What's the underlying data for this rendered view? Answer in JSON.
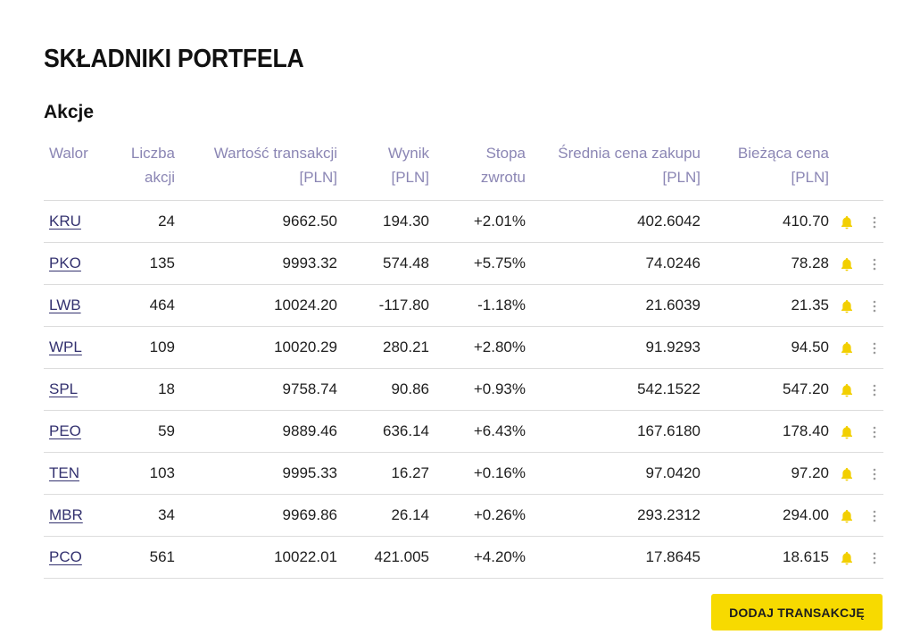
{
  "page": {
    "title": "SKŁADNIKI PORTFELA",
    "section_title": "Akcje"
  },
  "table": {
    "headers": {
      "walor": "Walor",
      "liczba_1": "Liczba",
      "liczba_2": "akcji",
      "wartosc_1": "Wartość transakcji",
      "wartosc_2": "[PLN]",
      "wynik_1": "Wynik",
      "wynik_2": "[PLN]",
      "stopa_1": "Stopa",
      "stopa_2": "zwrotu",
      "srednia_1": "Średnia cena zakupu",
      "srednia_2": "[PLN]",
      "biezaca_1": "Bieżąca cena",
      "biezaca_2": "[PLN]"
    },
    "rows": [
      {
        "ticker": "KRU",
        "shares": "24",
        "value": "9662.50",
        "result": "194.30",
        "return": "+2.01%",
        "return_sign": "pos",
        "avg_price": "402.6042",
        "current_price": "410.70"
      },
      {
        "ticker": "PKO",
        "shares": "135",
        "value": "9993.32",
        "result": "574.48",
        "return": "+5.75%",
        "return_sign": "pos",
        "avg_price": "74.0246",
        "current_price": "78.28"
      },
      {
        "ticker": "LWB",
        "shares": "464",
        "value": "10024.20",
        "result": "-117.80",
        "return": "-1.18%",
        "return_sign": "neg",
        "avg_price": "21.6039",
        "current_price": "21.35"
      },
      {
        "ticker": "WPL",
        "shares": "109",
        "value": "10020.29",
        "result": "280.21",
        "return": "+2.80%",
        "return_sign": "pos",
        "avg_price": "91.9293",
        "current_price": "94.50"
      },
      {
        "ticker": "SPL",
        "shares": "18",
        "value": "9758.74",
        "result": "90.86",
        "return": "+0.93%",
        "return_sign": "pos",
        "avg_price": "542.1522",
        "current_price": "547.20"
      },
      {
        "ticker": "PEO",
        "shares": "59",
        "value": "9889.46",
        "result": "636.14",
        "return": "+6.43%",
        "return_sign": "pos",
        "avg_price": "167.6180",
        "current_price": "178.40"
      },
      {
        "ticker": "TEN",
        "shares": "103",
        "value": "9995.33",
        "result": "16.27",
        "return": "+0.16%",
        "return_sign": "pos",
        "avg_price": "97.0420",
        "current_price": "97.20"
      },
      {
        "ticker": "MBR",
        "shares": "34",
        "value": "9969.86",
        "result": "26.14",
        "return": "+0.26%",
        "return_sign": "pos",
        "avg_price": "293.2312",
        "current_price": "294.00"
      },
      {
        "ticker": "PCO",
        "shares": "561",
        "value": "10022.01",
        "result": "421.005",
        "return": "+4.20%",
        "return_sign": "pos",
        "avg_price": "17.8645",
        "current_price": "18.615"
      }
    ],
    "row_icons": {
      "alert": "bell-icon",
      "menu": "more-vertical-icon"
    }
  },
  "actions": {
    "add_transaction_label": "DODAJ TRANSAKCJĘ"
  },
  "colors": {
    "accent_yellow": "#f7da00",
    "header_text": "#8b86b4",
    "ticker_link": "#33316f",
    "positive": "#2fbf71",
    "negative": "#e5322d",
    "bell": "#f2cf00",
    "divider": "#dcdcdc"
  }
}
